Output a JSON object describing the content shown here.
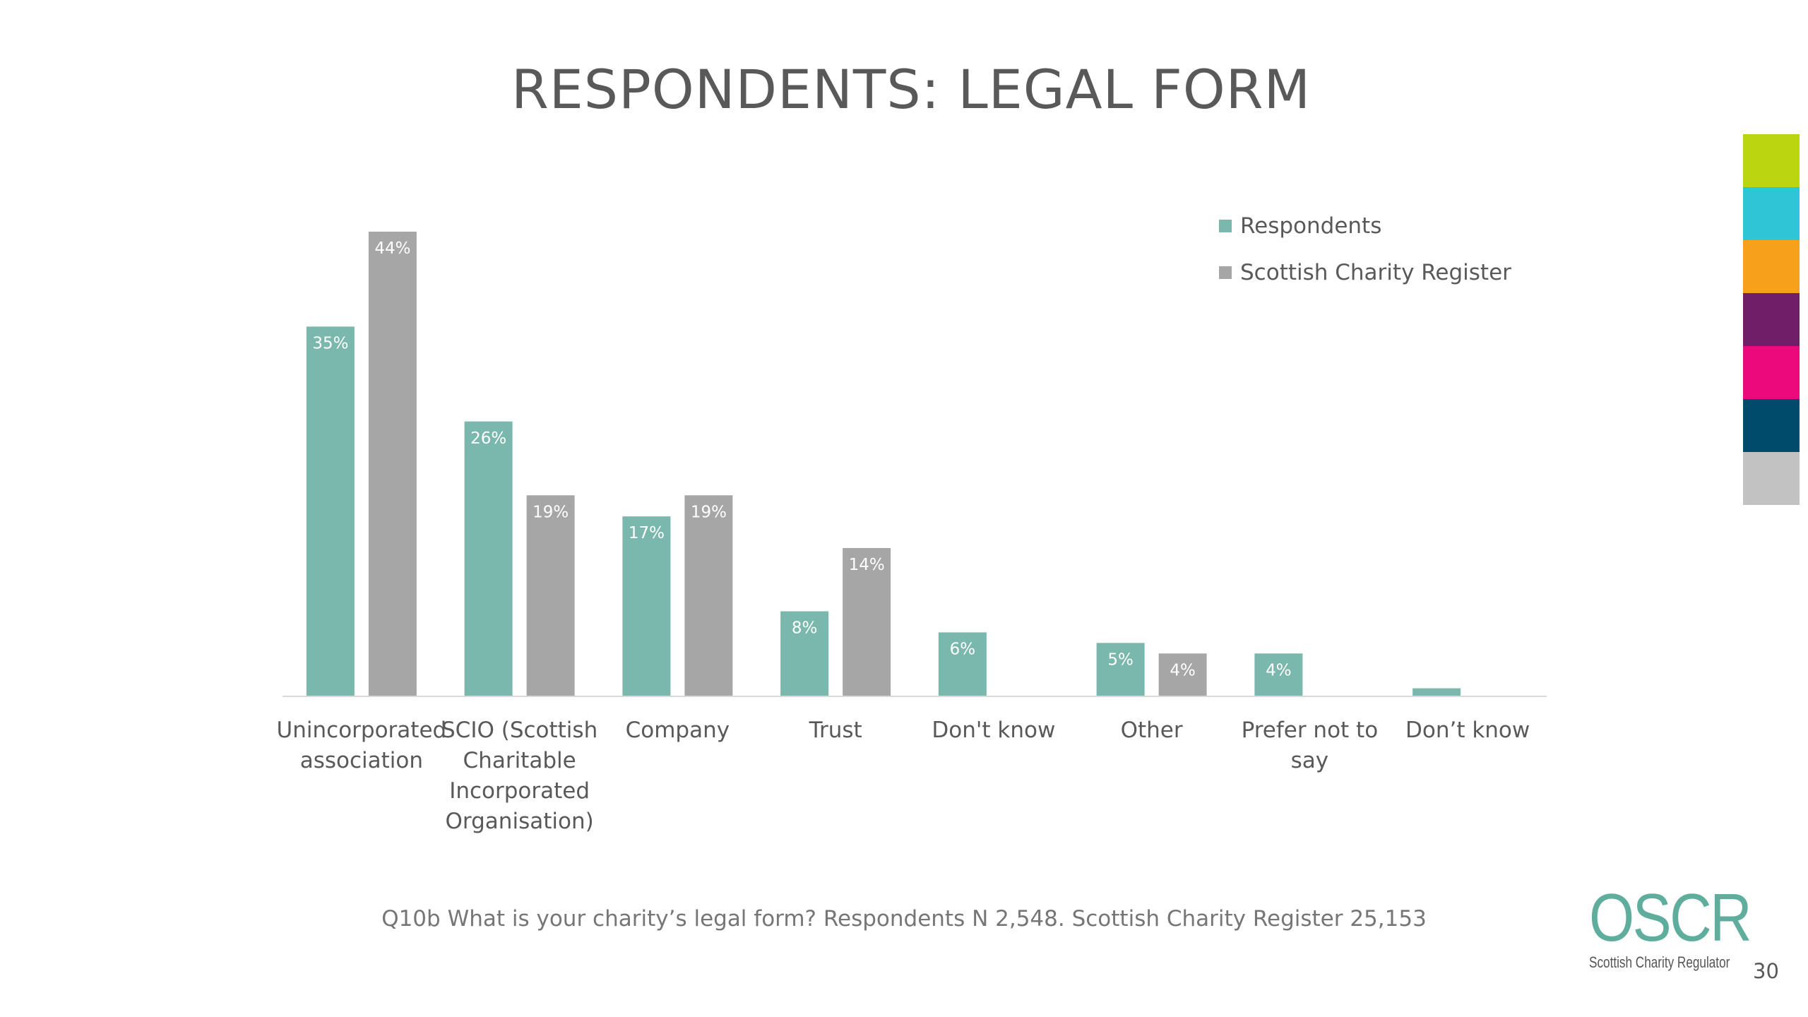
{
  "slide": {
    "title": "RESPONDENTS: LEGAL FORM",
    "footnote": "Q10b What is your charity’s legal form? Respondents N 2,548. Scottish Charity Register 25,153",
    "page_number": "30",
    "logo_text": "OSCR",
    "logo_subtext": "Scottish Charity Regulator"
  },
  "color_strip": [
    "#bcd511",
    "#2ec5d6",
    "#f7a01c",
    "#6f1e67",
    "#eb0a7b",
    "#004b6b",
    "#c2c2c2"
  ],
  "chart_data": {
    "type": "bar",
    "title": "RESPONDENTS: LEGAL FORM",
    "categories": [
      [
        "Unincorporated",
        "association"
      ],
      [
        "SCIO (Scottish",
        "Charitable",
        "Incorporated",
        "Organisation)"
      ],
      [
        "Company"
      ],
      [
        "Trust"
      ],
      [
        "Don't know"
      ],
      [
        "Other"
      ],
      [
        "Prefer not to",
        "say"
      ],
      [
        "Don’t know"
      ]
    ],
    "series": [
      {
        "name": "Respondents",
        "color": "#7ab8ad",
        "values": [
          35,
          26,
          17,
          8,
          6,
          5,
          4,
          0.7
        ],
        "labels": [
          "35%",
          "26%",
          "17%",
          "8%",
          "6%",
          "5%",
          "4%",
          ""
        ]
      },
      {
        "name": "Scottish Charity Register",
        "color": "#a6a6a6",
        "values": [
          44,
          19,
          19,
          14,
          null,
          4,
          null,
          null
        ],
        "labels": [
          "44%",
          "19%",
          "19%",
          "14%",
          "",
          "4%",
          "",
          ""
        ]
      }
    ],
    "unit": "%",
    "ylim": [
      0,
      44
    ],
    "grid": false,
    "legend_position": "top-right"
  }
}
